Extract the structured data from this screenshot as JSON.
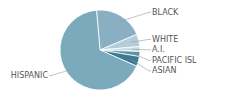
{
  "chart_data": {
    "type": "pie",
    "categories": [
      "BLACK",
      "WHITE",
      "A.I.",
      "PACIFIC ISL",
      "ASIAN",
      "HISPANIC"
    ],
    "values": [
      20,
      5,
      2,
      2,
      4,
      67
    ],
    "colors": [
      "#8aafc2",
      "#b5cdd9",
      "#c8dce6",
      "#5d8fa6",
      "#3d7a96",
      "#7aaabb"
    ]
  }
}
